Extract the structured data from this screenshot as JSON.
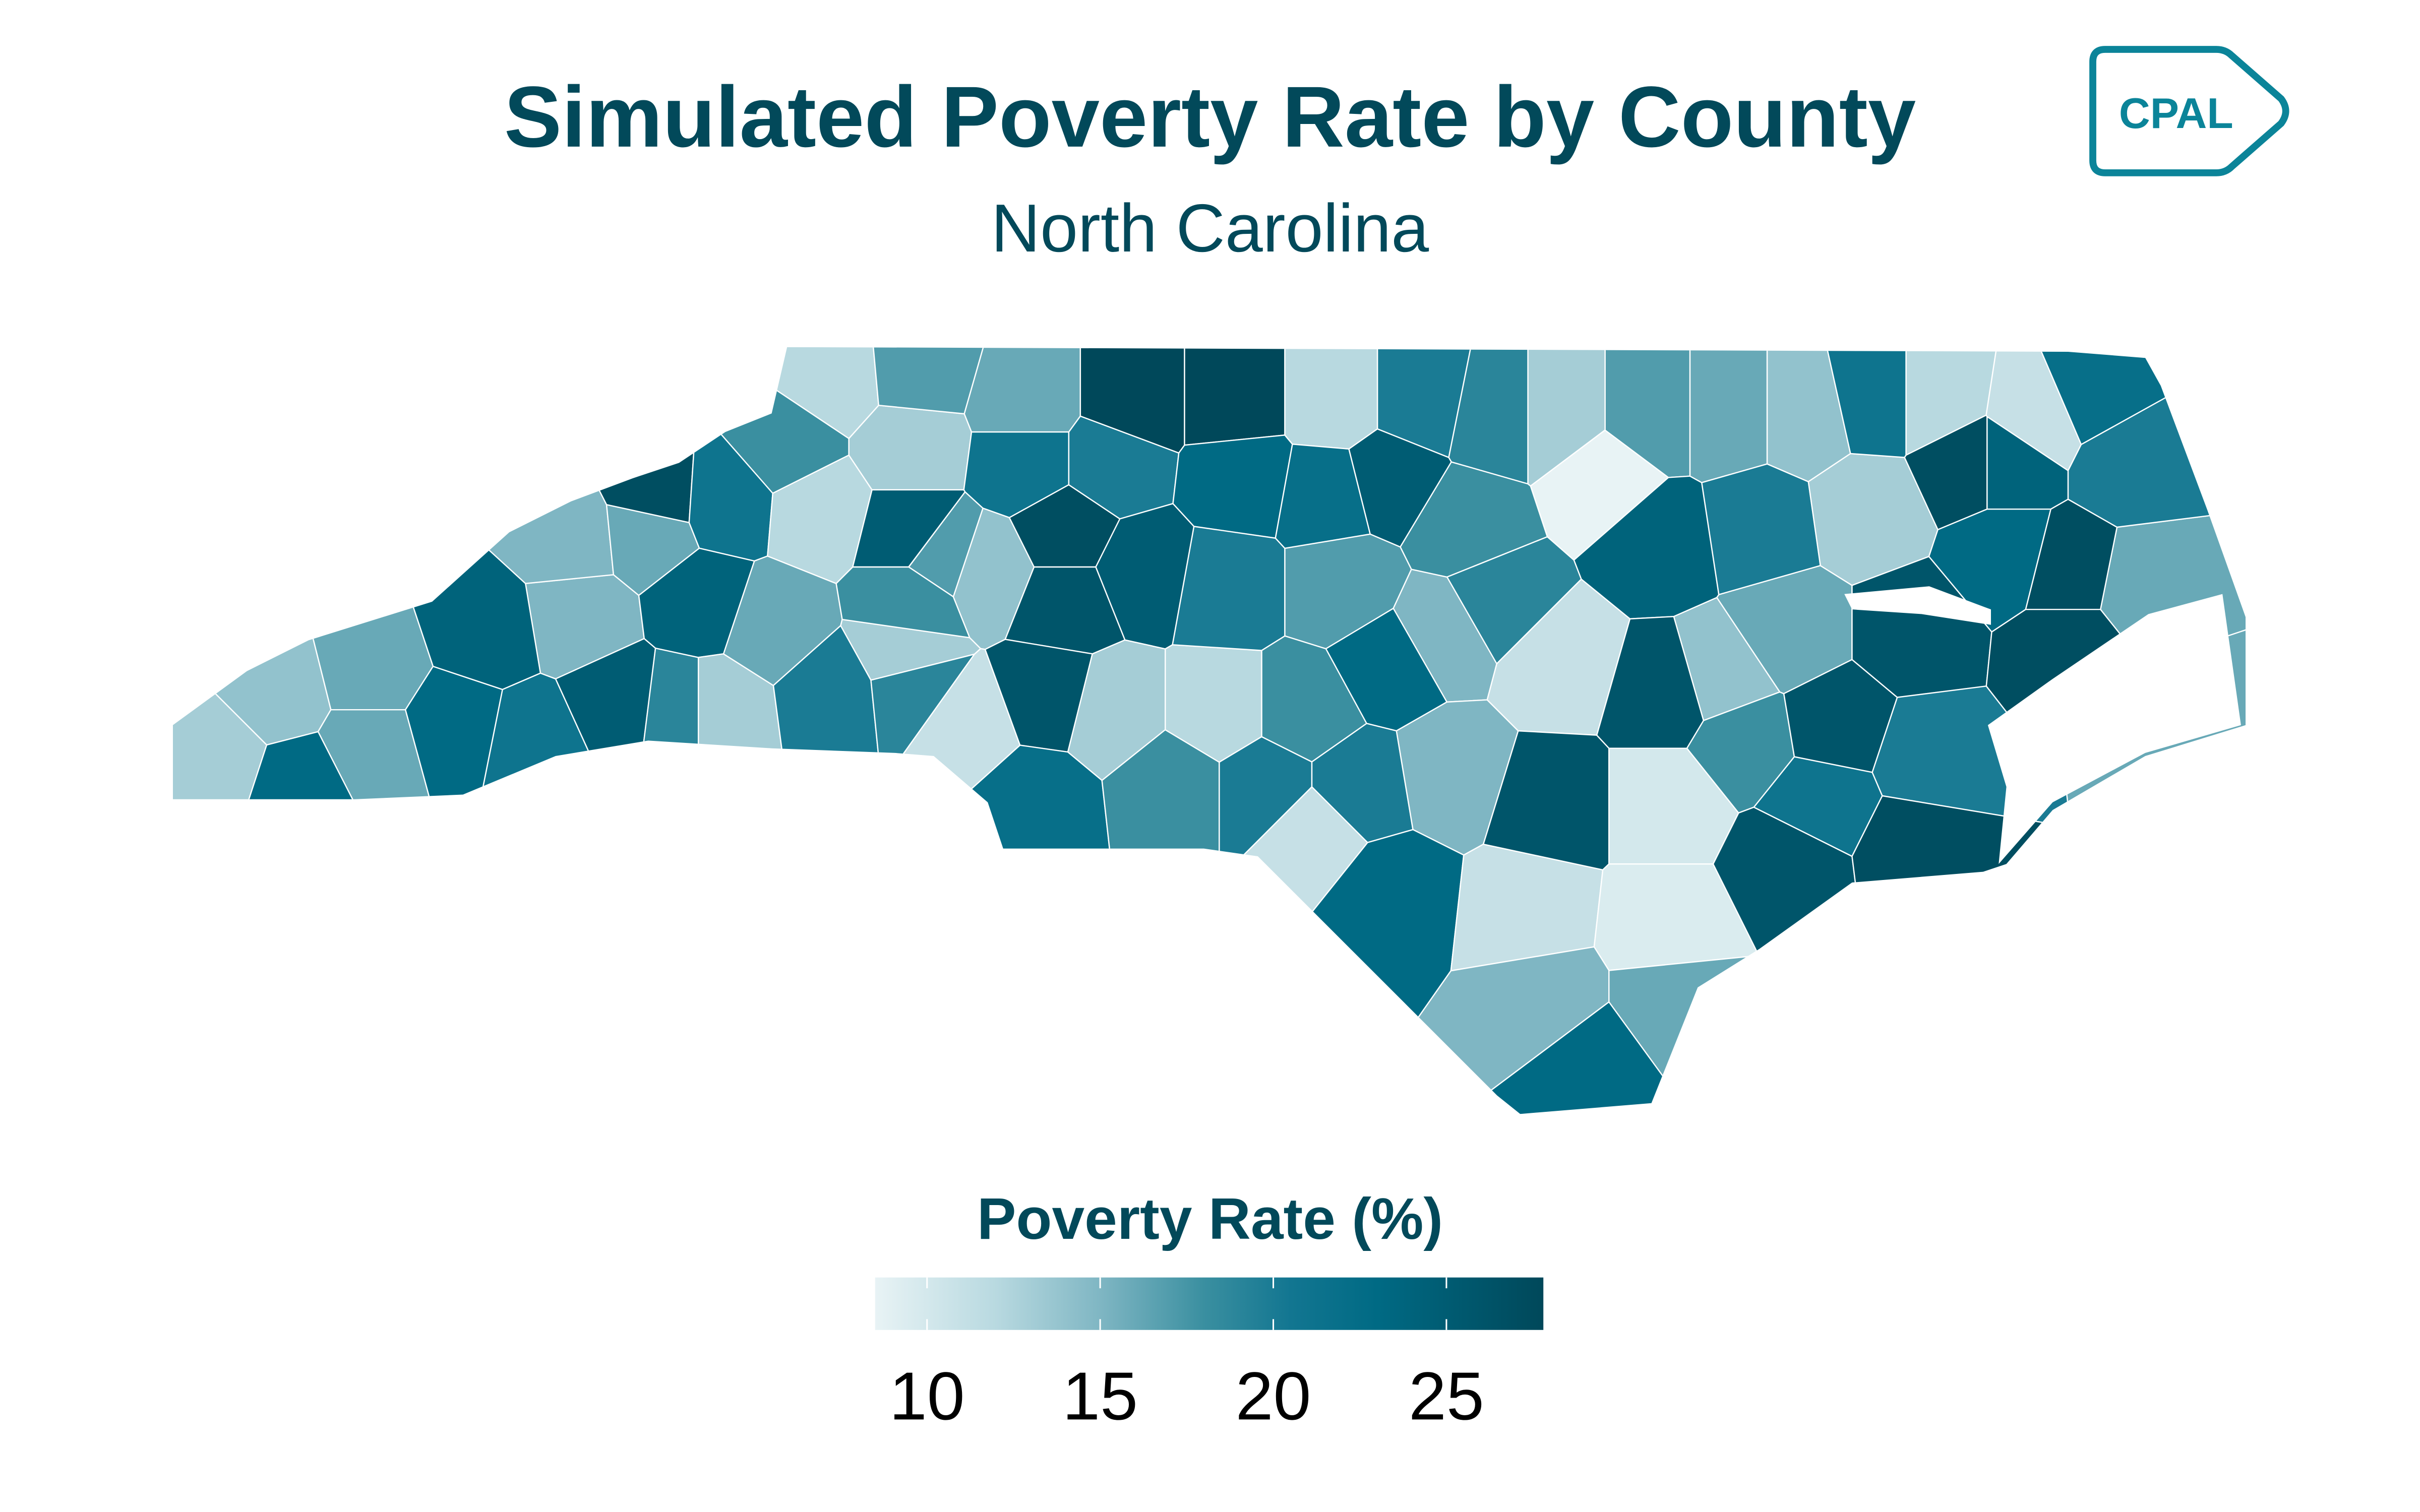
{
  "header": {
    "title": "Simulated Poverty Rate by County",
    "subtitle": "North Carolina"
  },
  "logo": {
    "text": "CPAL",
    "color": "#0b8499"
  },
  "legend": {
    "title": "Poverty Rate (%)",
    "ticks": [
      10,
      15,
      20,
      25
    ],
    "tick_labels": [
      "10",
      "15",
      "20",
      "25"
    ],
    "range": [
      8.5,
      27.8
    ]
  },
  "colors": {
    "text": "#02495a",
    "scale": [
      {
        "value": 8.5,
        "color": "#e8f3f5"
      },
      {
        "value": 12,
        "color": "#b8d9e0"
      },
      {
        "value": 15,
        "color": "#7fb6c3"
      },
      {
        "value": 18,
        "color": "#3a8fa0"
      },
      {
        "value": 20.5,
        "color": "#127691"
      },
      {
        "value": 23,
        "color": "#006a84"
      },
      {
        "value": 27.8,
        "color": "#00485a"
      }
    ]
  },
  "map_data": {
    "type": "choropleth",
    "state": "North Carolina",
    "metric": "Poverty Rate (%)",
    "county_values": [
      13,
      23,
      14,
      16,
      16,
      23,
      24,
      21,
      15,
      15,
      25,
      19,
      16,
      27,
      24,
      21,
      18,
      13,
      16,
      12,
      20,
      19,
      13,
      13,
      17,
      25,
      18,
      12,
      17,
      16,
      21,
      14,
      11,
      27,
      26,
      26,
      22,
      20,
      28,
      25,
      13,
      18,
      12,
      28,
      23,
      20,
      20,
      11,
      12,
      22,
      17,
      18,
      25,
      23,
      20,
      20,
      15,
      18,
      19,
      19,
      15,
      23,
      11,
      13,
      8.5,
      11,
      26,
      17,
      24,
      26,
      10,
      9.5,
      15,
      23,
      16,
      16,
      20,
      14,
      18,
      26,
      16,
      14,
      13,
      21,
      26,
      21,
      12,
      27,
      24,
      11,
      23,
      26,
      20,
      27,
      27,
      27,
      16,
      22,
      20,
      16
    ]
  }
}
